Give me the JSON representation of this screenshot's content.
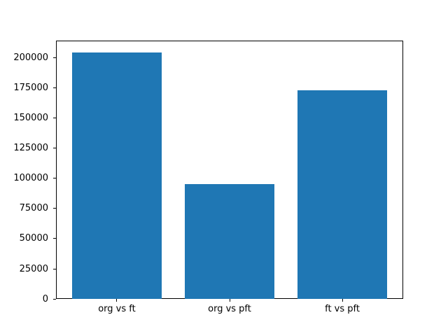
{
  "chart_data": {
    "type": "bar",
    "categories": [
      "org vs ft",
      "org vs pft",
      "ft vs pft"
    ],
    "values": [
      204000,
      95000,
      173000
    ],
    "title": "",
    "xlabel": "",
    "ylabel": "",
    "ylim": [
      0,
      214200
    ],
    "yticks": [
      0,
      25000,
      50000,
      75000,
      100000,
      125000,
      150000,
      175000,
      200000
    ],
    "grid": false,
    "legend": "none",
    "bar_color": "#1f77b4"
  },
  "colors": {
    "background": "#ffffff",
    "bar": "#1f77b4",
    "axis": "#000000",
    "tick_text": "#000000"
  }
}
